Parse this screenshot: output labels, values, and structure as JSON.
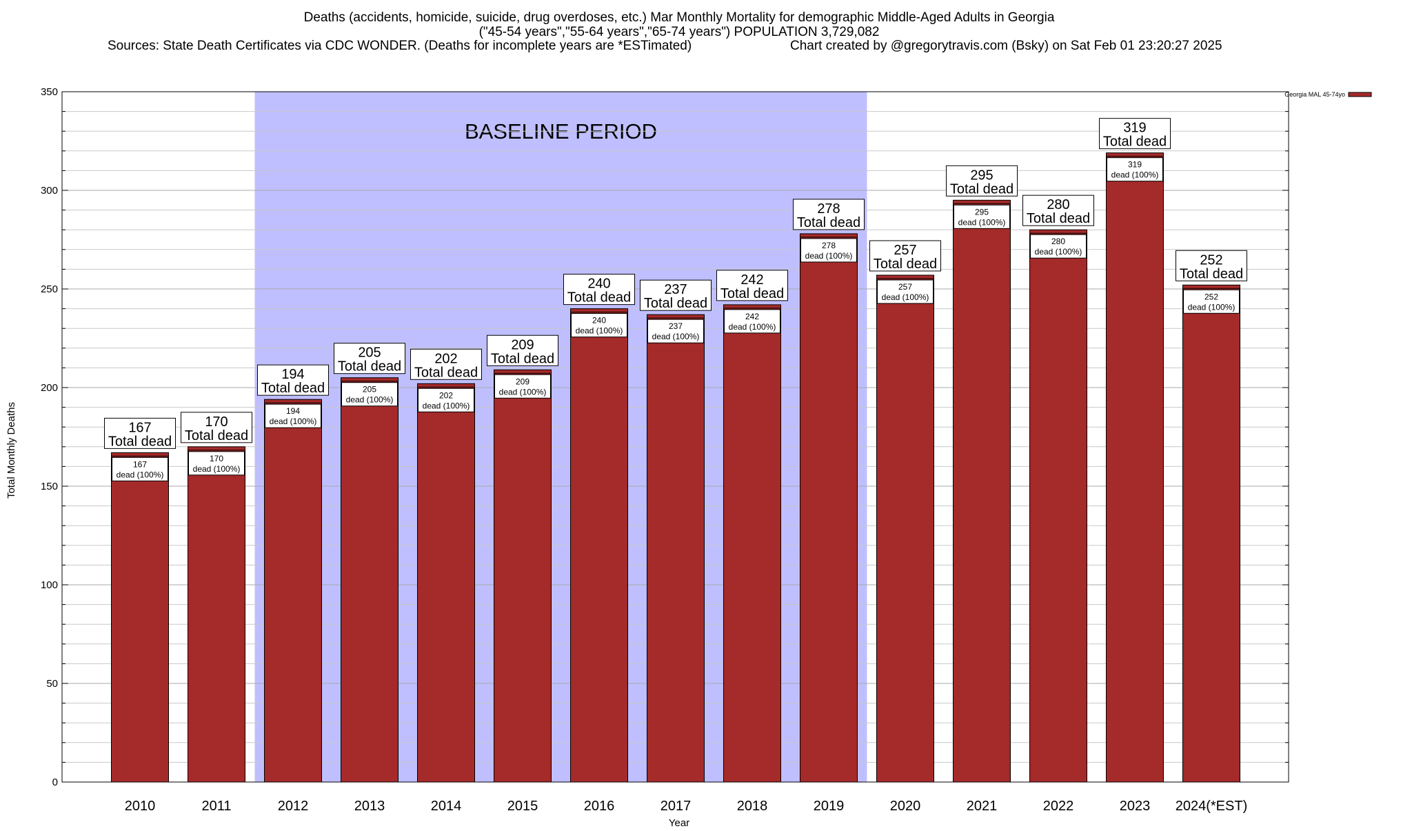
{
  "header": {
    "title_line1": "Deaths (accidents, homicide, suicide, drug overdoses, etc.) Mar Monthly Mortality for demographic Middle-Aged Adults in Georgia",
    "title_line2": "(\"45-54 years\",\"55-64 years\",\"65-74 years\") POPULATION 3,729,082",
    "sources": "Sources: State Death Certificates via CDC WONDER. (Deaths for incomplete years are *ESTimated)",
    "credit": "Chart created by @gregorytravis.com (Bsky) on Sat Feb 01 23:20:27 2025"
  },
  "chart_data": {
    "type": "bar",
    "xlabel": "Year",
    "ylabel": "Total Monthly Deaths",
    "ylim": [
      0,
      350
    ],
    "y_ticks": [
      0,
      50,
      100,
      150,
      200,
      250,
      300,
      350
    ],
    "y_minor_step": 10,
    "grid": true,
    "legend_position": "top-right",
    "categories": [
      "2010",
      "2011",
      "2012",
      "2013",
      "2014",
      "2015",
      "2016",
      "2017",
      "2018",
      "2019",
      "2020",
      "2021",
      "2022",
      "2023",
      "2024(*EST)"
    ],
    "series": [
      {
        "name": "Georgia MAL 45-74yo",
        "color": "#a52a2a",
        "values": [
          167,
          170,
          194,
          205,
          202,
          209,
          240,
          237,
          242,
          278,
          257,
          295,
          280,
          319,
          252
        ]
      }
    ],
    "baseline": {
      "label": "BASELINE PERIOD",
      "start": "2012",
      "end": "2019",
      "color": "#bfbfff"
    },
    "total_label": "Total dead",
    "inner_label": "dead (100%)"
  }
}
